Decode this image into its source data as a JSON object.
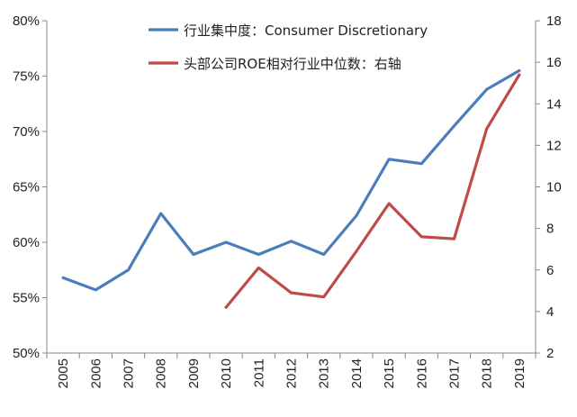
{
  "chart_data": {
    "type": "line",
    "title": "",
    "categories": [
      "2005",
      "2006",
      "2007",
      "2008",
      "2009",
      "2010",
      "2011",
      "2012",
      "2013",
      "2014",
      "2015",
      "2016",
      "2017",
      "2018",
      "2019"
    ],
    "y_left": {
      "ylim": [
        50,
        80
      ],
      "ticks": [
        50,
        55,
        60,
        65,
        70,
        75,
        80
      ],
      "tick_labels": [
        "50%",
        "55%",
        "60%",
        "65%",
        "70%",
        "75%",
        "80%"
      ]
    },
    "y_right": {
      "ylim": [
        2,
        18
      ],
      "ticks": [
        2,
        4,
        6,
        8,
        10,
        12,
        14,
        16,
        18
      ],
      "tick_labels": [
        "2",
        "4",
        "6",
        "8",
        "10",
        "12",
        "14",
        "16",
        "18"
      ]
    },
    "series": [
      {
        "name": "行业集中度：Consumer Discretionary",
        "axis": "left",
        "color": "#4a7ebb",
        "values": [
          56.8,
          55.7,
          57.5,
          62.6,
          58.9,
          60.0,
          58.9,
          60.1,
          58.9,
          62.4,
          67.5,
          67.1,
          70.5,
          73.8,
          75.5
        ]
      },
      {
        "name": "头部公司ROE相对行业中位数：右轴",
        "axis": "right",
        "color": "#be4b48",
        "values": [
          null,
          null,
          null,
          null,
          null,
          4.2,
          6.1,
          4.9,
          4.7,
          6.9,
          9.2,
          7.6,
          7.5,
          12.8,
          15.4
        ]
      }
    ],
    "grid": false,
    "legend_position": "top"
  }
}
